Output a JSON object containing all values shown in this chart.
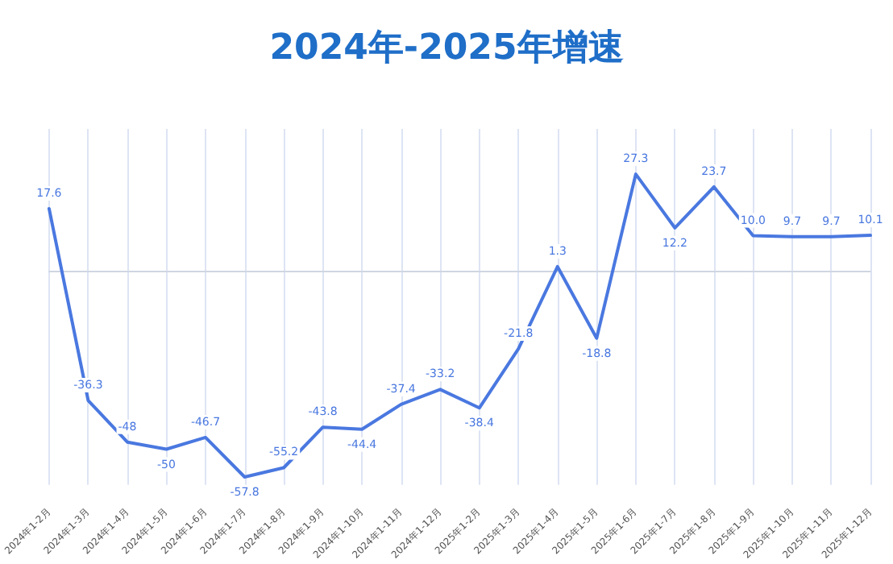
{
  "chart_data": {
    "type": "line",
    "title": "2024年-2025年增速",
    "categories": [
      "2024年1-2月",
      "2024年1-3月",
      "2024年1-4月",
      "2024年1-5月",
      "2024年1-6月",
      "2024年1-7月",
      "2024年1-8月",
      "2024年1-9月",
      "2024年1-10月",
      "2024年1-11月",
      "2024年1-12月",
      "2025年1-2月",
      "2025年1-3月",
      "2025年1-4月",
      "2025年1-5月",
      "2025年1-6月",
      "2025年1-7月",
      "2025年1-8月",
      "2025年1-9月",
      "2025年1-10月",
      "2025年1-11月",
      "2025年1-12月"
    ],
    "series": [
      {
        "color": "#4a78e0",
        "values": [
          17.6,
          -36.3,
          -48,
          -50,
          -46.7,
          -57.8,
          -55.2,
          -43.8,
          -44.4,
          -37.4,
          -33.2,
          -38.4,
          -21.8,
          1.3,
          -18.8,
          27.3,
          12.2,
          23.7,
          10.0,
          9.7,
          9.7,
          10.1
        ],
        "value_labels": [
          "17.6",
          "-36.3",
          "-48",
          "-50",
          "-46.7",
          "-57.8",
          "-55.2",
          "-43.8",
          "-44.4",
          "-37.4",
          "-33.2",
          "-38.4",
          "-21.8",
          "1.3",
          "-18.8",
          "27.3",
          "12.2",
          "23.7",
          "10.0",
          "9.7",
          "9.7",
          "10.1"
        ]
      }
    ],
    "grid": "x",
    "marker": "none",
    "line_style": "solid"
  }
}
